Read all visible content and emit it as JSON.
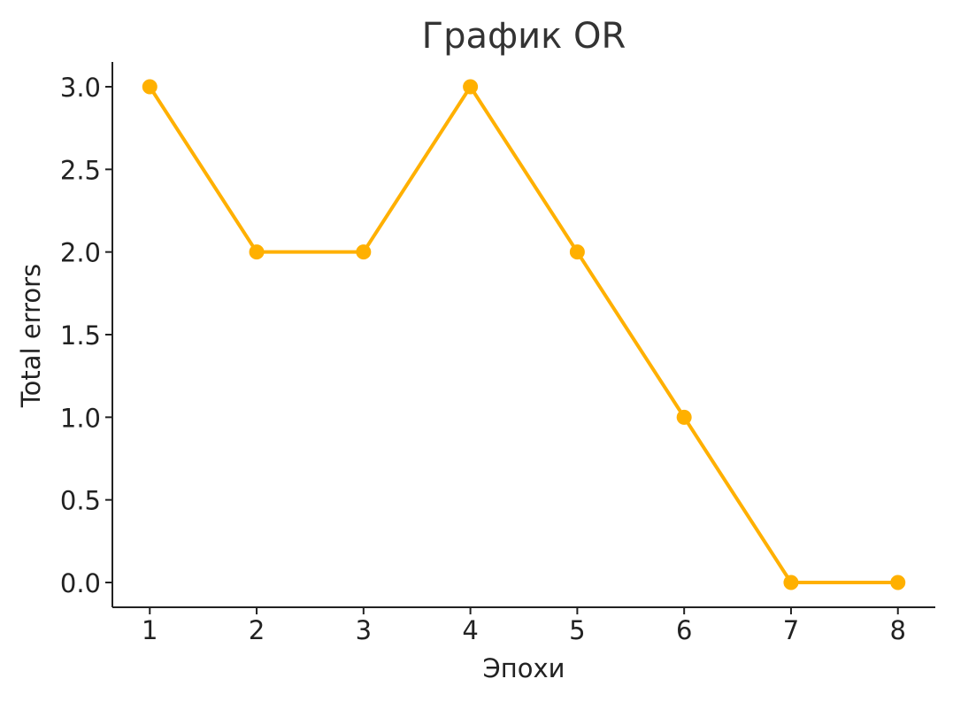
{
  "chart_data": {
    "type": "line",
    "title": "График OR",
    "xlabel": "Эпохи",
    "ylabel": "Total errors",
    "x": [
      1,
      2,
      3,
      4,
      5,
      6,
      7,
      8
    ],
    "series": [
      {
        "values": [
          3,
          2,
          2,
          3,
          2,
          1,
          0,
          0
        ],
        "color": "#FFB000",
        "marker": "circle"
      }
    ],
    "xticks": [
      "1",
      "2",
      "3",
      "4",
      "5",
      "6",
      "7",
      "8"
    ],
    "yticks": [
      "0.0",
      "0.5",
      "1.0",
      "1.5",
      "2.0",
      "2.5",
      "3.0"
    ],
    "ytick_values": [
      0,
      0.5,
      1,
      1.5,
      2,
      2.5,
      3
    ],
    "xlim": [
      0.65,
      8.35
    ],
    "ylim": [
      -0.15,
      3.15
    ],
    "grid": false,
    "legend": "none"
  }
}
